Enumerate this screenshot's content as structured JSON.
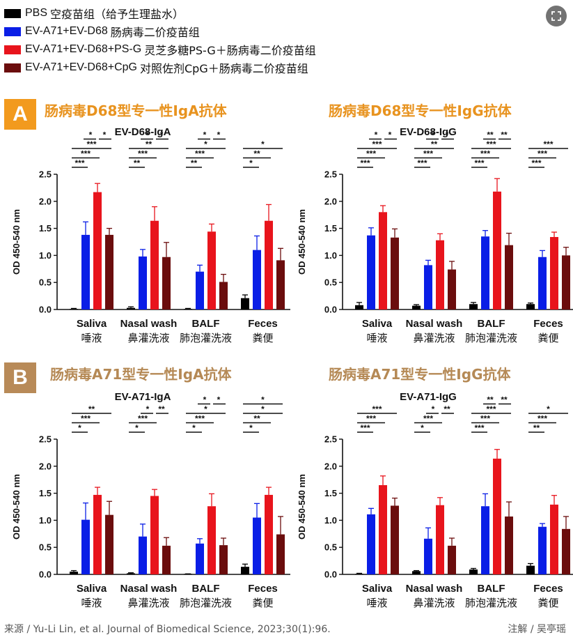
{
  "legend": [
    {
      "label": "PBS",
      "desc": "空疫苗组（给予生理盐水）",
      "color": "#000000"
    },
    {
      "label": "EV-A71+EV-D68",
      "desc": "肠病毒二价疫苗组",
      "color": "#0a1ee6"
    },
    {
      "label": "EV-A71+EV-D68+PS-G",
      "desc": "灵芝多糖PS-G＋肠病毒二价疫苗组",
      "color": "#e8141c"
    },
    {
      "label": "EV-A71+EV-D68+CpG",
      "desc": "对照佐剂CpG＋肠病毒二价疫苗组",
      "color": "#6b0d0d"
    }
  ],
  "corner_icon": "expand-icon",
  "sections": [
    {
      "badge": "A",
      "badge_color": "#f29a1e"
    },
    {
      "badge": "B",
      "badge_color": "#b88a58"
    }
  ],
  "headings": {
    "A_left": "肠病毒D68型专一性IgA抗体",
    "A_right": "肠病毒D68型专一性IgG抗体",
    "B_left": "肠病毒A71型专一性IgA抗体",
    "B_right": "肠病毒A71型专一性IgG抗体"
  },
  "chart_data": [
    {
      "type": "bar",
      "title": "EV-D68-IgA",
      "ylabel": "OD 450-540 nm",
      "ylim": [
        0,
        2.5
      ],
      "yticks": [
        "0.0",
        "0.5",
        "1.0",
        "1.5",
        "2.0",
        "2.5"
      ],
      "categories": [
        "Saliva",
        "Nasal wash",
        "BALF",
        "Feces"
      ],
      "categories_zh": [
        "唾液",
        "鼻灌洗液",
        "肺泡灌洗液",
        "粪便"
      ],
      "series": [
        {
          "values": [
            0.01,
            0.03,
            0.01,
            0.21
          ],
          "errors": [
            0.01,
            0.02,
            0.01,
            0.06
          ]
        },
        {
          "values": [
            1.38,
            0.98,
            0.7,
            1.1
          ],
          "errors": [
            0.24,
            0.13,
            0.12,
            0.26
          ]
        },
        {
          "values": [
            2.17,
            1.64,
            1.44,
            1.64
          ],
          "errors": [
            0.16,
            0.26,
            0.14,
            0.3
          ]
        },
        {
          "values": [
            1.38,
            0.97,
            0.51,
            0.91
          ],
          "errors": [
            0.12,
            0.27,
            0.14,
            0.22
          ]
        }
      ],
      "significance": [
        {
          "group": 0,
          "rows": [
            [
              "*",
              "*"
            ],
            [
              "***"
            ],
            [
              "***"
            ],
            [
              "***"
            ]
          ]
        },
        {
          "group": 1,
          "rows": [
            [
              "*",
              "*"
            ],
            [
              "**"
            ],
            [
              "***"
            ],
            [
              "**"
            ]
          ]
        },
        {
          "group": 2,
          "rows": [
            [
              "*",
              "*"
            ],
            [
              "*"
            ],
            [
              "***"
            ],
            [
              "**"
            ]
          ]
        },
        {
          "group": 3,
          "rows": [
            [
              "*"
            ],
            [
              "**"
            ],
            [
              "*"
            ]
          ]
        }
      ]
    },
    {
      "type": "bar",
      "title": "EV-D68-IgG",
      "ylabel": "OD 450-540 nm",
      "ylim": [
        0,
        2.5
      ],
      "yticks": [
        "0.0",
        "0.5",
        "1.0",
        "1.5",
        "2.0",
        "2.5"
      ],
      "categories": [
        "Saliva",
        "Nasal wash",
        "BALF",
        "Feces"
      ],
      "categories_zh": [
        "唾液",
        "鼻灌洗液",
        "肺泡灌洗液",
        "粪便"
      ],
      "series": [
        {
          "values": [
            0.08,
            0.07,
            0.1,
            0.1
          ],
          "errors": [
            0.05,
            0.02,
            0.03,
            0.02
          ]
        },
        {
          "values": [
            1.37,
            0.82,
            1.35,
            0.97
          ],
          "errors": [
            0.14,
            0.09,
            0.11,
            0.12
          ]
        },
        {
          "values": [
            1.8,
            1.28,
            2.18,
            1.34
          ],
          "errors": [
            0.12,
            0.12,
            0.24,
            0.09
          ]
        },
        {
          "values": [
            1.33,
            0.74,
            1.19,
            1.0
          ],
          "errors": [
            0.16,
            0.15,
            0.22,
            0.15
          ]
        }
      ],
      "significance": [
        {
          "group": 0,
          "rows": [
            [
              "*",
              "*"
            ],
            [
              "***"
            ],
            [
              "***"
            ],
            [
              "***"
            ]
          ]
        },
        {
          "group": 1,
          "rows": [
            [
              "*",
              "*"
            ],
            [
              "**"
            ],
            [
              "***"
            ],
            [
              "***"
            ]
          ]
        },
        {
          "group": 2,
          "rows": [
            [
              "**",
              "**"
            ],
            [
              "***"
            ],
            [
              "***"
            ],
            [
              "***"
            ]
          ]
        },
        {
          "group": 3,
          "rows": [
            [
              "***"
            ],
            [
              "***"
            ],
            [
              "***"
            ]
          ]
        }
      ]
    },
    {
      "type": "bar",
      "title": "EV-A71-IgA",
      "ylabel": "OD 450-540 nm",
      "ylim": [
        0,
        2.5
      ],
      "yticks": [
        "0.0",
        "0.5",
        "1.0",
        "1.5",
        "2.0",
        "2.5"
      ],
      "categories": [
        "Saliva",
        "Nasal wash",
        "BALF",
        "Feces"
      ],
      "categories_zh": [
        "唾液",
        "鼻灌洗液",
        "肺泡灌洗液",
        "粪便"
      ],
      "series": [
        {
          "values": [
            0.05,
            0.02,
            0.0,
            0.14
          ],
          "errors": [
            0.02,
            0.01,
            0.01,
            0.05
          ]
        },
        {
          "values": [
            1.01,
            0.7,
            0.57,
            1.05
          ],
          "errors": [
            0.31,
            0.23,
            0.09,
            0.26
          ]
        },
        {
          "values": [
            1.47,
            1.45,
            1.26,
            1.47
          ],
          "errors": [
            0.14,
            0.12,
            0.23,
            0.14
          ]
        },
        {
          "values": [
            1.1,
            0.53,
            0.54,
            0.74
          ],
          "errors": [
            0.25,
            0.15,
            0.13,
            0.33
          ]
        }
      ],
      "significance": [
        {
          "group": 0,
          "rows": [
            [
              "**"
            ],
            [
              "***"
            ],
            [
              "*"
            ]
          ]
        },
        {
          "group": 1,
          "rows": [
            [
              "*",
              "**"
            ],
            [
              "***"
            ],
            [
              "*"
            ]
          ]
        },
        {
          "group": 2,
          "rows": [
            [
              "*",
              "*"
            ],
            [
              "*"
            ],
            [
              "***"
            ],
            [
              "*"
            ]
          ]
        },
        {
          "group": 3,
          "rows": [
            [
              "*"
            ],
            [
              "*"
            ],
            [
              "**"
            ],
            [
              "*"
            ]
          ]
        }
      ]
    },
    {
      "type": "bar",
      "title": "EV-A71-IgG",
      "ylabel": "OD 450-540 nm",
      "ylim": [
        0,
        2.5
      ],
      "yticks": [
        "0.0",
        "0.5",
        "1.0",
        "1.5",
        "2.0",
        "2.5"
      ],
      "categories": [
        "Saliva",
        "Nasal wash",
        "BALF",
        "Feces"
      ],
      "categories_zh": [
        "唾液",
        "鼻灌洗液",
        "肺泡灌洗液",
        "粪便"
      ],
      "series": [
        {
          "values": [
            0.01,
            0.06,
            0.09,
            0.16
          ],
          "errors": [
            0.01,
            0.01,
            0.02,
            0.04
          ]
        },
        {
          "values": [
            1.11,
            0.66,
            1.26,
            0.88
          ],
          "errors": [
            0.11,
            0.2,
            0.23,
            0.06
          ]
        },
        {
          "values": [
            1.65,
            1.28,
            2.14,
            1.29
          ],
          "errors": [
            0.17,
            0.14,
            0.17,
            0.17
          ]
        },
        {
          "values": [
            1.27,
            0.53,
            1.07,
            0.84
          ],
          "errors": [
            0.14,
            0.14,
            0.27,
            0.23
          ]
        }
      ],
      "significance": [
        {
          "group": 0,
          "rows": [
            [
              "***"
            ],
            [
              "***"
            ],
            [
              "***"
            ]
          ]
        },
        {
          "group": 1,
          "rows": [
            [
              "*",
              "**"
            ],
            [
              "***"
            ],
            [
              "*"
            ]
          ]
        },
        {
          "group": 2,
          "rows": [
            [
              "**",
              "**"
            ],
            [
              "***"
            ],
            [
              "***"
            ],
            [
              "***"
            ]
          ]
        },
        {
          "group": 3,
          "rows": [
            [
              "*"
            ],
            [
              "***"
            ],
            [
              "**"
            ]
          ]
        }
      ]
    }
  ],
  "footer": {
    "source": "来源 / Yu-Li Lin, et al. Journal of Biomedical Science, 2023;30(1):96.",
    "note": "注解 / 吴亭瑶"
  }
}
